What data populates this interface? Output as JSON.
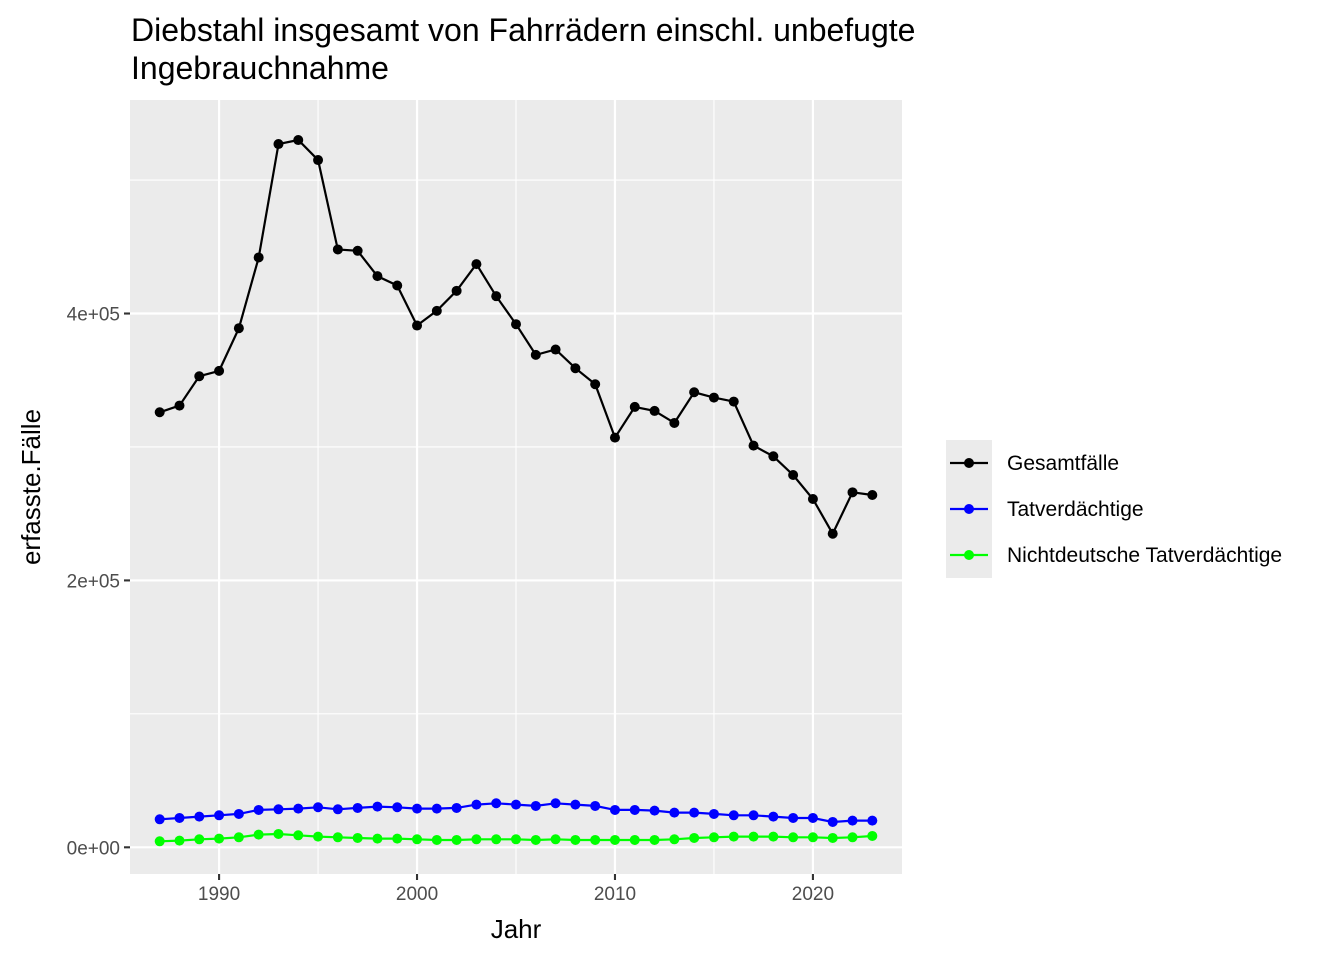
{
  "chart_data": {
    "type": "line",
    "title_line1": "Diebstahl insgesamt von Fahrrädern einschl. unbefugte",
    "title_line2": "Ingebrauchnahme",
    "xlabel": "Jahr",
    "ylabel": "erfasste.Fälle",
    "xlim": [
      1985.5,
      2024.5
    ],
    "ylim": [
      -20000,
      560000
    ],
    "x_ticks": [
      1990,
      2000,
      2010,
      2020
    ],
    "x_tick_labels": [
      "1990",
      "2000",
      "2010",
      "2020"
    ],
    "y_ticks": [
      0,
      200000,
      400000
    ],
    "y_tick_labels": [
      "0e+00",
      "2e+05",
      "4e+05"
    ],
    "grid": true,
    "legend_position": "right",
    "x": [
      1987,
      1988,
      1989,
      1990,
      1991,
      1992,
      1993,
      1994,
      1995,
      1996,
      1997,
      1998,
      1999,
      2000,
      2001,
      2002,
      2003,
      2004,
      2005,
      2006,
      2007,
      2008,
      2009,
      2010,
      2011,
      2012,
      2013,
      2014,
      2015,
      2016,
      2017,
      2018,
      2019,
      2020,
      2021,
      2022,
      2023
    ],
    "series": [
      {
        "name": "Gesamtfälle",
        "color": "#000000",
        "values": [
          326000,
          331000,
          353000,
          357000,
          389000,
          442000,
          527000,
          530000,
          515000,
          448000,
          447000,
          428000,
          421000,
          391000,
          402000,
          417000,
          437000,
          413000,
          392000,
          369000,
          373000,
          359000,
          347000,
          307000,
          330000,
          327000,
          318000,
          341000,
          337000,
          334000,
          301000,
          293000,
          279000,
          261000,
          235000,
          266000,
          264000
        ]
      },
      {
        "name": "Tatverdächtige",
        "color": "#0000ff",
        "values": [
          21000,
          22000,
          23000,
          24000,
          25000,
          28000,
          28500,
          29000,
          30000,
          28500,
          29500,
          30500,
          30000,
          29000,
          29000,
          29500,
          32000,
          33000,
          32000,
          31000,
          33000,
          32000,
          31000,
          28000,
          28000,
          27500,
          26000,
          26000,
          25000,
          24000,
          24000,
          23000,
          22000,
          22000,
          19000,
          20000,
          20000
        ]
      },
      {
        "name": "Nichtdeutsche Tatverdächtige",
        "color": "#00ff00",
        "values": [
          4500,
          5000,
          6000,
          6500,
          7500,
          9500,
          10000,
          9000,
          8000,
          7500,
          7000,
          6500,
          6500,
          6000,
          5500,
          5500,
          6000,
          6000,
          6000,
          5500,
          6000,
          5500,
          5500,
          5500,
          5500,
          5500,
          6000,
          7000,
          7500,
          8000,
          8000,
          8000,
          7500,
          7500,
          7000,
          7500,
          8500
        ]
      }
    ]
  }
}
